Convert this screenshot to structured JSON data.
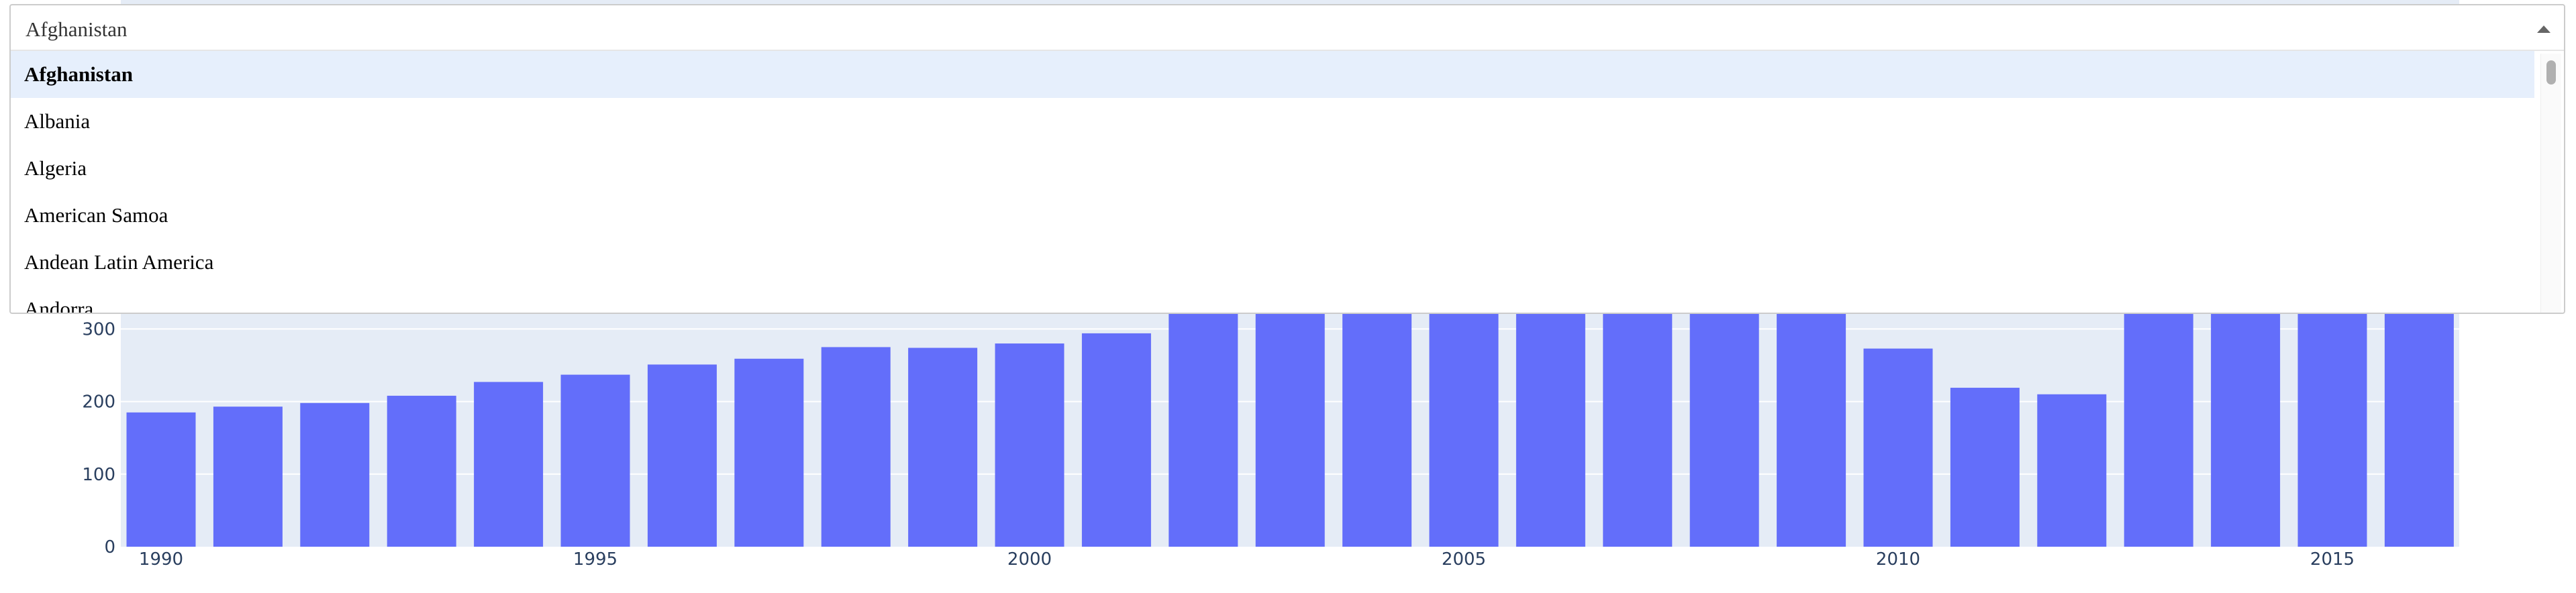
{
  "dropdown": {
    "value": "Afghanistan",
    "options": [
      "Afghanistan",
      "Albania",
      "Algeria",
      "American Samoa",
      "Andean Latin America",
      "Andorra"
    ],
    "selected_index": 0,
    "arrow_icon": "caret-up-icon"
  },
  "chart_data": {
    "type": "bar",
    "title": "",
    "xlabel": "",
    "ylabel": "",
    "x": [
      1990,
      1991,
      1992,
      1993,
      1994,
      1995,
      1996,
      1997,
      1998,
      1999,
      2000,
      2001,
      2002,
      2003,
      2004,
      2005,
      2006,
      2007,
      2008,
      2009,
      2010,
      2011,
      2012,
      2013,
      2014,
      2015,
      2016
    ],
    "values": [
      185,
      193,
      198,
      208,
      227,
      237,
      251,
      259,
      275,
      274,
      280,
      294,
      340,
      340,
      340,
      340,
      340,
      340,
      340,
      340,
      273,
      219,
      210,
      340,
      340,
      340,
      340
    ],
    "x_ticks": [
      "1990",
      "1995",
      "2000",
      "2005",
      "2010",
      "2015"
    ],
    "y_ticks": [
      "0",
      "100",
      "200",
      "300"
    ],
    "ylim": [
      0,
      340
    ],
    "grid": true,
    "bar_color": "#636efa",
    "plot_bg": "#e5ecf6"
  }
}
